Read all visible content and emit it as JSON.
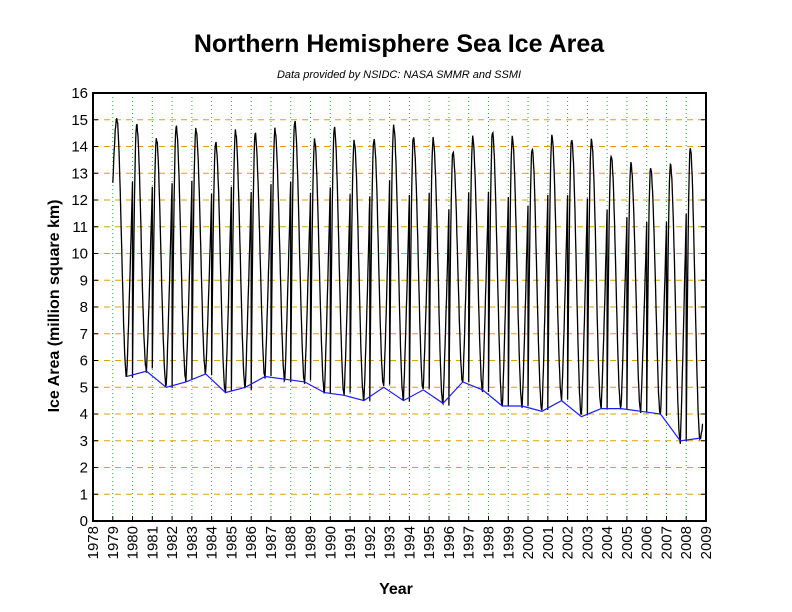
{
  "chart_data": {
    "type": "line",
    "title": "Northern Hemisphere Sea Ice Area",
    "subtitle": "Data provided by NSIDC: NASA SMMR and SSMI",
    "xlabel": "Year",
    "ylabel": "Ice Area (million square km)",
    "xlim": [
      1978,
      2009
    ],
    "ylim": [
      0,
      16
    ],
    "x_ticks": [
      "1978",
      "1979",
      "1980",
      "1981",
      "1982",
      "1983",
      "1984",
      "1985",
      "1986",
      "1987",
      "1988",
      "1989",
      "1990",
      "1991",
      "1992",
      "1993",
      "1994",
      "1995",
      "1996",
      "1997",
      "1998",
      "1999",
      "2000",
      "2001",
      "2002",
      "2003",
      "2004",
      "2005",
      "2006",
      "2007",
      "2008",
      "2009"
    ],
    "y_ticks": [
      "0",
      "1",
      "2",
      "3",
      "4",
      "5",
      "6",
      "7",
      "8",
      "9",
      "10",
      "11",
      "12",
      "13",
      "14",
      "15",
      "16"
    ],
    "grid": true,
    "grid_colors": {
      "horizontal": "#e0a000",
      "vertical": "#2e9e2e"
    },
    "series": [
      {
        "color": "#000000",
        "max_values": [
          15.0,
          14.8,
          14.3,
          14.8,
          14.7,
          14.2,
          14.6,
          14.5,
          14.6,
          14.9,
          14.2,
          14.7,
          14.2,
          14.3,
          14.8,
          14.4,
          14.3,
          13.8,
          14.3,
          14.5,
          14.3,
          13.9,
          14.4,
          14.3,
          14.3,
          13.7,
          13.4,
          13.2,
          13.3,
          13.9
        ],
        "min_values": [
          5.4,
          5.6,
          5.0,
          5.2,
          5.5,
          4.8,
          5.0,
          5.4,
          5.3,
          5.2,
          4.8,
          4.7,
          4.5,
          5.0,
          4.5,
          4.9,
          4.4,
          5.2,
          4.9,
          4.3,
          4.3,
          4.1,
          4.5,
          3.9,
          4.2,
          4.2,
          4.1,
          4.0,
          3.0,
          3.1
        ]
      },
      {
        "color": "#1a1aff",
        "x": [
          1979.7,
          1980.7,
          1981.7,
          1982.7,
          1983.7,
          1984.7,
          1985.7,
          1986.7,
          1987.7,
          1988.7,
          1989.7,
          1990.7,
          1991.7,
          1992.7,
          1993.7,
          1994.7,
          1995.7,
          1996.7,
          1997.7,
          1998.7,
          1999.7,
          2000.7,
          2001.7,
          2002.7,
          2003.7,
          2004.7,
          2005.7,
          2006.7,
          2007.7,
          2008.7
        ],
        "values": [
          5.4,
          5.6,
          5.0,
          5.2,
          5.5,
          4.8,
          5.0,
          5.4,
          5.3,
          5.2,
          4.8,
          4.7,
          4.5,
          5.0,
          4.5,
          4.9,
          4.4,
          5.2,
          4.9,
          4.3,
          4.3,
          4.1,
          4.5,
          3.9,
          4.2,
          4.2,
          4.1,
          4.0,
          3.0,
          3.1
        ]
      }
    ]
  }
}
